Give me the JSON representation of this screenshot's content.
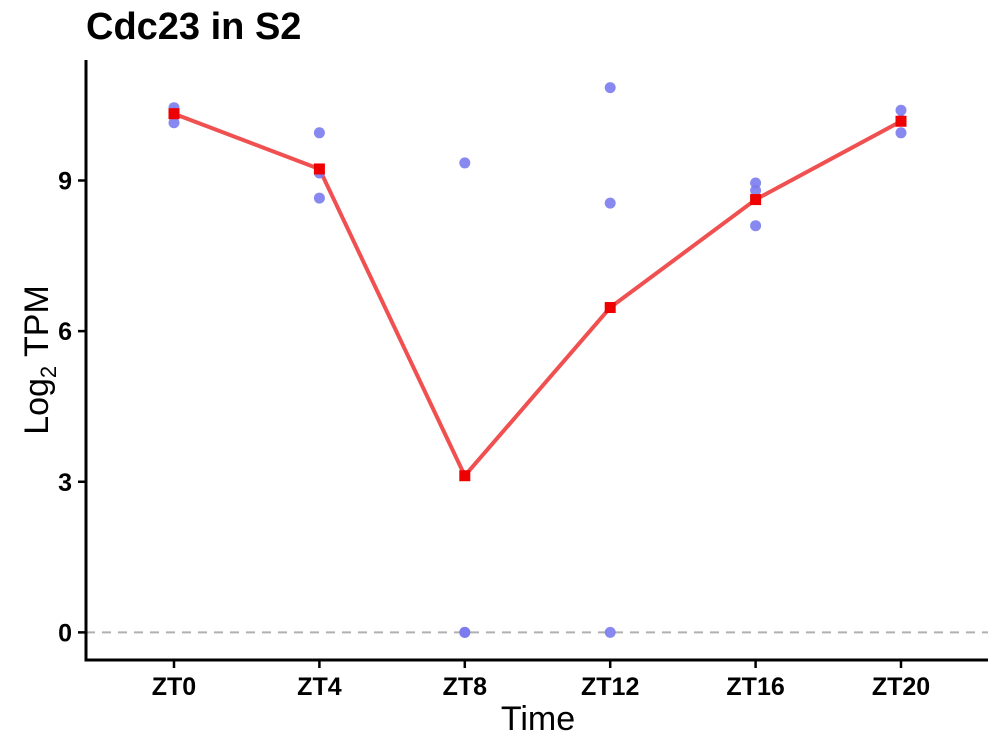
{
  "chart_data": {
    "type": "scatter",
    "title": "Cdc23 in S2",
    "xlabel": "Time",
    "ylabel_main": "Log",
    "ylabel_sub": "2",
    "ylabel_rest": " TPM",
    "categories": [
      "ZT0",
      "ZT4",
      "ZT8",
      "ZT12",
      "ZT16",
      "ZT20"
    ],
    "yticks": [
      0,
      3,
      6,
      9
    ],
    "ylim": [
      -0.55,
      11.4
    ],
    "reference_line": 0,
    "replicates": [
      {
        "x": "ZT0",
        "values": [
          10.45,
          10.35,
          10.15
        ]
      },
      {
        "x": "ZT4",
        "values": [
          9.95,
          9.15,
          8.65
        ]
      },
      {
        "x": "ZT8",
        "values": [
          9.35,
          0.0,
          0.0
        ]
      },
      {
        "x": "ZT12",
        "values": [
          10.85,
          8.55,
          0.0
        ]
      },
      {
        "x": "ZT16",
        "values": [
          8.95,
          8.8,
          8.1
        ]
      },
      {
        "x": "ZT20",
        "values": [
          10.4,
          10.2,
          9.95
        ]
      }
    ],
    "mean_series": {
      "values": [
        10.33,
        9.23,
        3.12,
        6.47,
        8.62,
        10.18
      ],
      "color": "#f05050",
      "marker_color": "#ee0000"
    },
    "point_color": "#7b7bf0",
    "grid": false,
    "legend": "none"
  }
}
